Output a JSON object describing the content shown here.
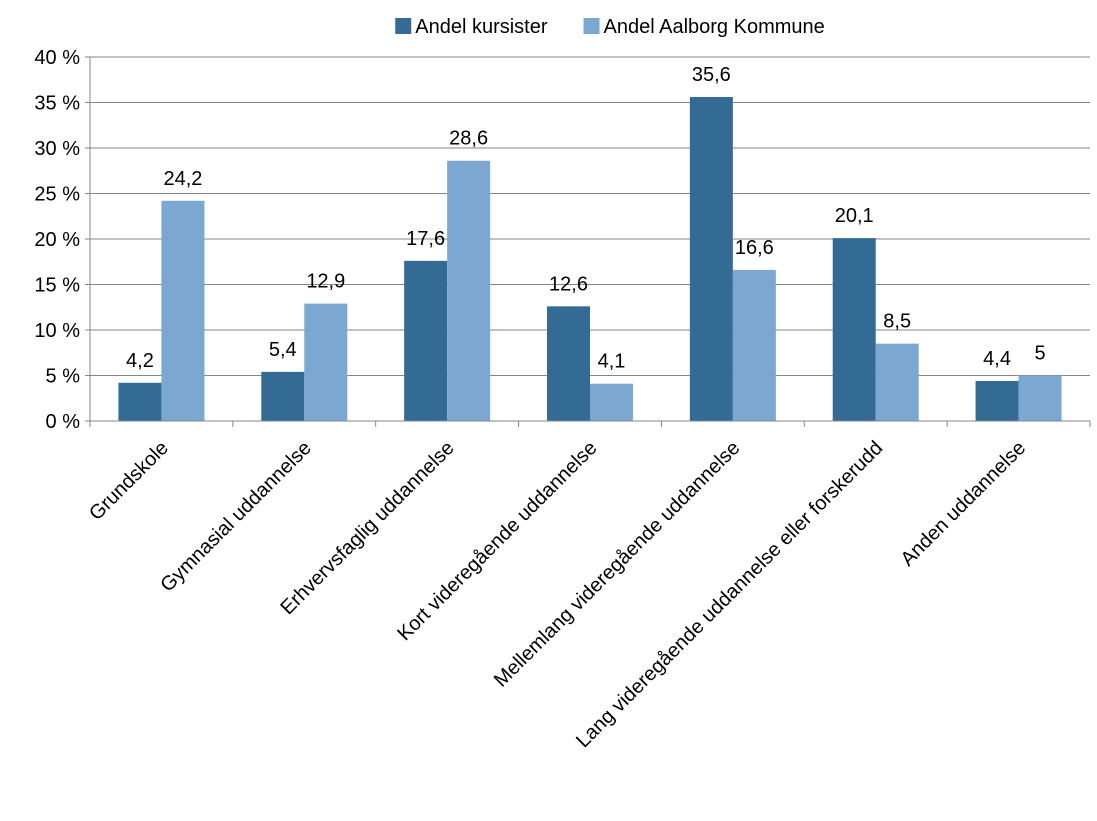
{
  "chart_data": {
    "type": "bar",
    "title": "",
    "xlabel": "",
    "ylabel": "",
    "categories": [
      "Grundskole",
      "Gymnasial uddannelse",
      "Erhvervsfaglig uddannelse",
      "Kort videregående uddannelse",
      "Mellemlang videregående uddannelse",
      "Lang videregående uddannelse eller forskerudd",
      "Anden uddannelse"
    ],
    "series": [
      {
        "name": "Andel kursister",
        "color": "#336b95",
        "values": [
          4.2,
          5.4,
          17.6,
          12.6,
          35.6,
          20.1,
          4.4
        ],
        "labels": [
          "4,2",
          "5,4",
          "17,6",
          "12,6",
          "35,6",
          "20,1",
          "4,4"
        ]
      },
      {
        "name": "Andel Aalborg Kommune",
        "color": "#7ba7d1",
        "values": [
          24.2,
          12.9,
          28.6,
          4.1,
          16.6,
          8.5,
          5
        ],
        "labels": [
          "24,2",
          "12,9",
          "28,6",
          "4,1",
          "16,6",
          "8,5",
          "5"
        ]
      }
    ],
    "ylim": [
      0,
      40
    ],
    "yticks": [
      0,
      5,
      10,
      15,
      20,
      25,
      30,
      35,
      40
    ],
    "ytick_labels": [
      "0 %",
      "5 %",
      "10 %",
      "15 %",
      "20 %",
      "25 %",
      "30 %",
      "35 %",
      "40 %"
    ],
    "grid": true,
    "legend_position": "top-center",
    "gridline_color": "#868686"
  }
}
